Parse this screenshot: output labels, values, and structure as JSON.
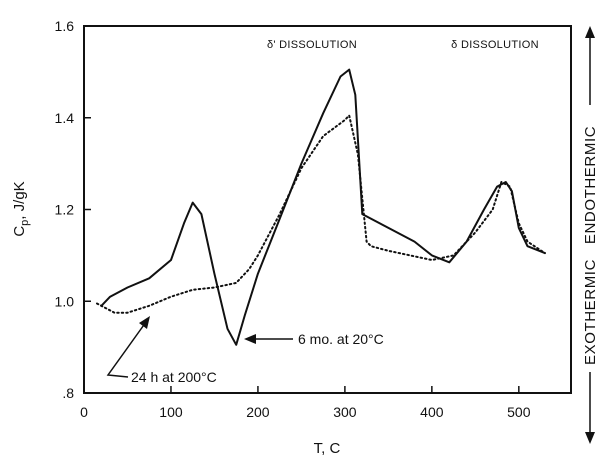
{
  "chart_data": {
    "type": "line",
    "xlabel": "T, C",
    "ylabel_main": "C",
    "ylabel_sub": "p",
    "ylabel_rest": ", J/gK",
    "xlim": [
      0,
      560
    ],
    "ylim": [
      0.8,
      1.6
    ],
    "x_ticks": [
      0,
      100,
      200,
      300,
      400,
      500
    ],
    "x_tick_labels": [
      "0",
      "100",
      "200",
      "300",
      "400",
      "500"
    ],
    "y_ticks": [
      0.8,
      1.0,
      1.2,
      1.4,
      1.6
    ],
    "y_tick_labels": [
      ".8",
      "1.0",
      "1.2",
      "1.4",
      "1.6"
    ],
    "grid": false,
    "annotations": {
      "delta_prime": "δ' DISSOLUTION",
      "delta": "δ DISSOLUTION",
      "endothermic": "ENDOTHERMIC",
      "exothermic": "EXOTHERMIC",
      "callout_solid": "6 mo. at 20°C",
      "callout_dotted": "24 h at 200°C"
    },
    "series": [
      {
        "name": "6 mo. at 20°C",
        "style": "solid",
        "x": [
          20,
          30,
          50,
          75,
          100,
          115,
          125,
          135,
          150,
          165,
          175,
          185,
          200,
          225,
          250,
          275,
          295,
          305,
          312,
          320,
          350,
          380,
          400,
          420,
          440,
          460,
          475,
          485,
          492,
          500,
          510,
          530
        ],
        "y": [
          0.99,
          1.01,
          1.03,
          1.05,
          1.09,
          1.17,
          1.215,
          1.19,
          1.06,
          0.94,
          0.905,
          0.97,
          1.06,
          1.18,
          1.3,
          1.41,
          1.49,
          1.505,
          1.45,
          1.19,
          1.16,
          1.13,
          1.1,
          1.085,
          1.13,
          1.2,
          1.25,
          1.26,
          1.24,
          1.16,
          1.12,
          1.105
        ]
      },
      {
        "name": "24 h at 200°C",
        "style": "dotted",
        "x": [
          15,
          25,
          35,
          50,
          75,
          100,
          125,
          150,
          175,
          190,
          200,
          225,
          250,
          275,
          300,
          305,
          315,
          325,
          330,
          350,
          375,
          400,
          425,
          450,
          470,
          480,
          490,
          500,
          510,
          530
        ],
        "y": [
          0.995,
          0.985,
          0.975,
          0.975,
          0.99,
          1.01,
          1.025,
          1.03,
          1.04,
          1.07,
          1.1,
          1.19,
          1.29,
          1.36,
          1.395,
          1.405,
          1.32,
          1.13,
          1.12,
          1.11,
          1.1,
          1.09,
          1.1,
          1.15,
          1.2,
          1.26,
          1.25,
          1.17,
          1.13,
          1.105
        ]
      }
    ]
  }
}
